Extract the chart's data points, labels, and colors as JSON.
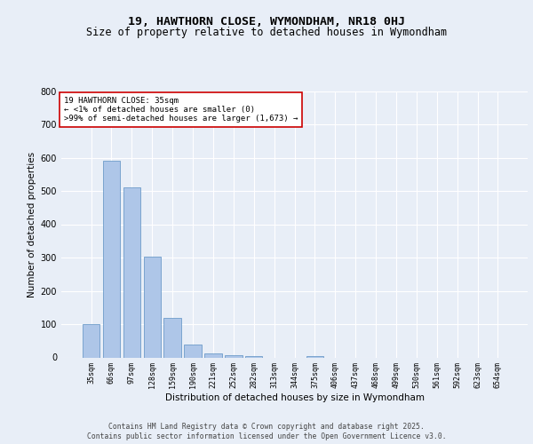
{
  "title_line1": "19, HAWTHORN CLOSE, WYMONDHAM, NR18 0HJ",
  "title_line2": "Size of property relative to detached houses in Wymondham",
  "xlabel": "Distribution of detached houses by size in Wymondham",
  "ylabel": "Number of detached properties",
  "categories": [
    "35sqm",
    "66sqm",
    "97sqm",
    "128sqm",
    "159sqm",
    "190sqm",
    "221sqm",
    "252sqm",
    "282sqm",
    "313sqm",
    "344sqm",
    "375sqm",
    "406sqm",
    "437sqm",
    "468sqm",
    "499sqm",
    "530sqm",
    "561sqm",
    "592sqm",
    "623sqm",
    "654sqm"
  ],
  "values": [
    101,
    590,
    511,
    303,
    120,
    40,
    13,
    7,
    4,
    0,
    0,
    5,
    0,
    0,
    0,
    0,
    0,
    0,
    0,
    0,
    0
  ],
  "bar_color": "#aec6e8",
  "bar_edge_color": "#5a8fc2",
  "annotation_box_color": "#cc0000",
  "annotation_text": "19 HAWTHORN CLOSE: 35sqm\n← <1% of detached houses are smaller (0)\n>99% of semi-detached houses are larger (1,673) →",
  "ylim": [
    0,
    800
  ],
  "yticks": [
    0,
    100,
    200,
    300,
    400,
    500,
    600,
    700,
    800
  ],
  "bg_color": "#e8eef7",
  "plot_bg_color": "#e8eef7",
  "grid_color": "#ffffff",
  "footer_line1": "Contains HM Land Registry data © Crown copyright and database right 2025.",
  "footer_line2": "Contains public sector information licensed under the Open Government Licence v3.0.",
  "title_fontsize": 9.5,
  "subtitle_fontsize": 8.5,
  "annotation_fontsize": 6.5,
  "footer_fontsize": 5.8,
  "ylabel_fontsize": 7.5,
  "xlabel_fontsize": 7.5,
  "ytick_fontsize": 7,
  "xtick_fontsize": 6
}
